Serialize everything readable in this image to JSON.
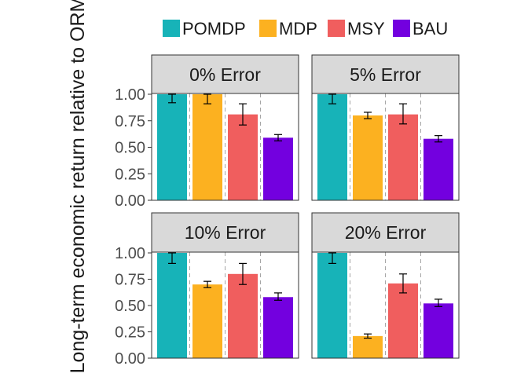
{
  "chart_data": {
    "type": "bar",
    "ylabel": "Long-term economic return relative to ORM",
    "ylim": [
      0,
      1.0
    ],
    "yticks": [
      "0.00",
      "0.25",
      "0.50",
      "0.75",
      "1.00"
    ],
    "legend": {
      "position": "top",
      "entries": [
        {
          "name": "POMDP",
          "color": "#17B3B8"
        },
        {
          "name": "MDP",
          "color": "#FCB120"
        },
        {
          "name": "MSY",
          "color": "#F05E5E"
        },
        {
          "name": "BAU",
          "color": "#7300DF"
        }
      ]
    },
    "grid": "dashed vertical separators between bars",
    "panels": [
      {
        "title": "0% Error",
        "values": [
          1.0,
          1.0,
          0.81,
          0.59
        ],
        "err_low": [
          0.92,
          0.91,
          0.71,
          0.56
        ],
        "err_high": [
          1.0,
          1.0,
          0.91,
          0.62
        ]
      },
      {
        "title": "5% Error",
        "values": [
          1.0,
          0.8,
          0.81,
          0.58
        ],
        "err_low": [
          0.91,
          0.77,
          0.72,
          0.55
        ],
        "err_high": [
          1.0,
          0.83,
          0.91,
          0.61
        ]
      },
      {
        "title": "10% Error",
        "values": [
          1.0,
          0.7,
          0.8,
          0.58
        ],
        "err_low": [
          0.9,
          0.67,
          0.7,
          0.55
        ],
        "err_high": [
          1.0,
          0.73,
          0.9,
          0.62
        ]
      },
      {
        "title": "20% Error",
        "values": [
          1.0,
          0.21,
          0.71,
          0.52
        ],
        "err_low": [
          0.9,
          0.19,
          0.62,
          0.49
        ],
        "err_high": [
          1.0,
          0.23,
          0.8,
          0.56
        ]
      }
    ]
  }
}
